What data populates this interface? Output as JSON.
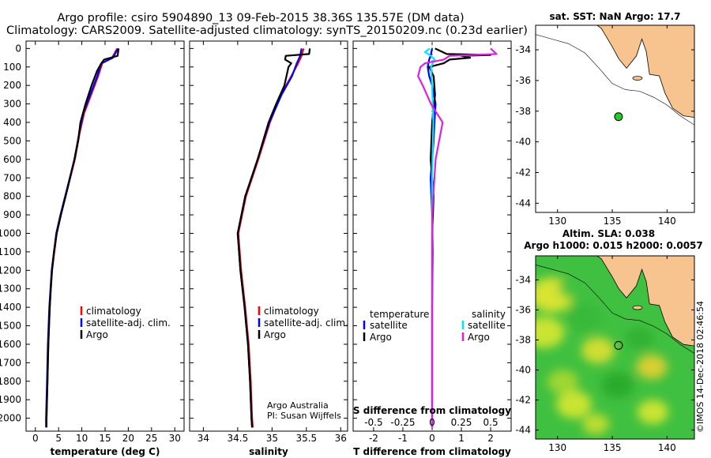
{
  "header": {
    "line1": "Argo profile: csiro 5904890_13 09-Feb-2015 38.36S 135.57E (DM data)",
    "line2": "Climatology: CARS2009. Satellite-adjusted climatology: synTS_20150209.nc (0.23d earlier)"
  },
  "depth_ticks": [
    0,
    100,
    200,
    300,
    400,
    500,
    600,
    700,
    800,
    900,
    1000,
    1100,
    1200,
    1300,
    1400,
    1500,
    1600,
    1700,
    1800,
    1900,
    2000
  ],
  "colors": {
    "climatology": "#ff0000",
    "satellite": "#0000ff",
    "argo": "#000000",
    "cyan": "#00e5ff",
    "magenta": "#e020e0",
    "land": "#f7c48f"
  },
  "chart_data": [
    {
      "type": "line",
      "title": "",
      "xlabel": "temperature (deg C)",
      "ylabel": "",
      "xlim": [
        -2,
        32
      ],
      "ylim": [
        2070,
        0
      ],
      "x_ticks": [
        0,
        5,
        10,
        15,
        20,
        25,
        30
      ],
      "x_tick_labels": [
        "0",
        "5",
        "10",
        "15",
        "20",
        "25",
        "30"
      ],
      "legend": [
        {
          "label": "climatology",
          "color": "#ff0000"
        },
        {
          "label": "satellite-adj. clim.",
          "color": "#0000ff"
        },
        {
          "label": "Argo",
          "color": "#000000"
        }
      ],
      "series": [
        {
          "name": "climatology",
          "depth": [
            0,
            50,
            80,
            150,
            250,
            350,
            450,
            600,
            750,
            900,
            1000,
            1200,
            1400,
            1600,
            1800,
            2000,
            2050
          ],
          "values": [
            17.6,
            16.5,
            14.4,
            13.5,
            12.0,
            10.5,
            9.6,
            8.5,
            7.0,
            5.5,
            4.6,
            3.6,
            3.1,
            2.8,
            2.6,
            2.4,
            2.4
          ]
        },
        {
          "name": "satellite",
          "depth": [
            0,
            50,
            80,
            150,
            250,
            350,
            450,
            600,
            750,
            900,
            1000,
            1200,
            1400,
            1600,
            1800,
            2000,
            2050
          ],
          "values": [
            17.8,
            16.7,
            14.2,
            13.3,
            11.8,
            10.3,
            9.5,
            8.4,
            6.9,
            5.4,
            4.5,
            3.5,
            3.0,
            2.7,
            2.5,
            2.3,
            2.3
          ]
        },
        {
          "name": "Argo",
          "depth": [
            0,
            40,
            60,
            80,
            120,
            200,
            300,
            400,
            500,
            600,
            750,
            900,
            1000,
            1100,
            1200,
            1300,
            1400,
            1600,
            1800,
            2000,
            2050
          ],
          "values": [
            17.9,
            17.7,
            14.8,
            14.2,
            13.3,
            12.1,
            10.8,
            9.7,
            9.2,
            8.4,
            7.0,
            5.5,
            4.6,
            4.0,
            3.6,
            3.3,
            3.1,
            2.8,
            2.6,
            2.4,
            2.4
          ]
        }
      ]
    },
    {
      "type": "line",
      "title": "",
      "xlabel": "salinity",
      "ylabel": "",
      "xlim": [
        33.8,
        36.1
      ],
      "ylim": [
        2070,
        0
      ],
      "x_ticks": [
        34,
        34.5,
        35,
        35.5,
        36
      ],
      "x_tick_labels": [
        "34",
        "34.5",
        "35",
        "35.5",
        "36"
      ],
      "legend": [
        {
          "label": "climatology",
          "color": "#ff0000"
        },
        {
          "label": "satellite-adj. clim.",
          "color": "#0000ff"
        },
        {
          "label": "Argo",
          "color": "#000000"
        }
      ],
      "annotations": [
        "Argo Australia",
        "PI: Susan Wijffels"
      ],
      "series": [
        {
          "name": "climatology",
          "depth": [
            0,
            40,
            80,
            150,
            250,
            400,
            600,
            800,
            1000,
            1200,
            1400,
            1600,
            1800,
            2000,
            2050
          ],
          "values": [
            35.46,
            35.43,
            35.38,
            35.28,
            35.13,
            34.97,
            34.8,
            34.62,
            34.51,
            34.55,
            34.61,
            34.66,
            34.69,
            34.71,
            34.72
          ]
        },
        {
          "name": "satellite",
          "depth": [
            0,
            40,
            80,
            150,
            250,
            400,
            600,
            800,
            1000,
            1200,
            1400,
            1600,
            1800,
            2000,
            2050
          ],
          "values": [
            35.43,
            35.41,
            35.36,
            35.29,
            35.14,
            34.96,
            34.79,
            34.61,
            34.5,
            34.54,
            34.6,
            34.65,
            34.68,
            34.7,
            34.71
          ]
        },
        {
          "name": "Argo",
          "depth": [
            0,
            30,
            40,
            60,
            80,
            100,
            200,
            300,
            400,
            600,
            800,
            1000,
            1200,
            1400,
            1600,
            1800,
            2000,
            2050
          ],
          "values": [
            35.55,
            35.54,
            35.2,
            35.19,
            35.28,
            35.24,
            35.18,
            35.06,
            34.95,
            34.79,
            34.61,
            34.5,
            34.54,
            34.6,
            34.65,
            34.68,
            34.7,
            34.71
          ]
        }
      ]
    },
    {
      "type": "line",
      "title": "S difference from climatology",
      "xlabel": "T difference from climatology",
      "ylabel": "",
      "xlim": [
        -2.7,
        2.7
      ],
      "ylim": [
        2070,
        0
      ],
      "x_ticks": [
        -2,
        -1,
        0,
        1,
        2
      ],
      "x_tick_labels": [
        "-2",
        "-1",
        "0",
        "1",
        "2"
      ],
      "secondary_x_ticks": [
        -0.5,
        -0.25,
        0,
        0.25,
        0.5
      ],
      "secondary_x_tick_labels": [
        "-0.5",
        "-0.25",
        "0",
        "0.25",
        "0.5"
      ],
      "secondary_xlim": [
        -0.675,
        0.675
      ],
      "legend_temperature_header": "temperature",
      "legend_salinity_header": "salinity",
      "legend_temperature": [
        {
          "label": "satellite",
          "color": "#0000ff"
        },
        {
          "label": "Argo",
          "color": "#000000"
        }
      ],
      "legend_salinity": [
        {
          "label": "satellite",
          "color": "#00e5ff"
        },
        {
          "label": "Argo",
          "color": "#e020e0"
        }
      ],
      "series": [
        {
          "name": "T satellite",
          "color": "#0000ff",
          "depth": [
            0,
            40,
            60,
            100,
            150,
            200,
            300,
            400,
            500,
            700,
            900,
            1100,
            1400,
            1700,
            2050
          ],
          "values": [
            0.0,
            -0.05,
            -0.1,
            -0.15,
            -0.1,
            0.0,
            0.12,
            0.08,
            0.05,
            -0.05,
            0.0,
            0.02,
            0.0,
            0.0,
            0.0
          ]
        },
        {
          "name": "T Argo",
          "color": "#000000",
          "depth": [
            0,
            30,
            35,
            40,
            50,
            60,
            80,
            100,
            150,
            250,
            400,
            600,
            800,
            1000,
            1500,
            2050
          ],
          "values": [
            0.1,
            0.5,
            2.0,
            1.0,
            1.3,
            0.6,
            0.4,
            -0.1,
            0.05,
            0.1,
            0.0,
            -0.05,
            0.05,
            0.0,
            0.0,
            0.0
          ]
        },
        {
          "name": "S satellite",
          "color": "#00e5ff",
          "depth": [
            0,
            20,
            40,
            60,
            100,
            200,
            400,
            700,
            1000,
            1500,
            2050
          ],
          "values": [
            -0.02,
            -0.06,
            -0.01,
            0.02,
            -0.01,
            0.0,
            0.01,
            0.0,
            0.0,
            0.0,
            0.0
          ]
        },
        {
          "name": "S Argo",
          "color": "#e020e0",
          "depth": [
            0,
            30,
            40,
            60,
            80,
            100,
            150,
            200,
            300,
            400,
            600,
            900,
            1200,
            2050
          ],
          "values": [
            0.5,
            0.55,
            0.15,
            0.1,
            -0.06,
            -0.1,
            -0.12,
            -0.08,
            -0.01,
            0.09,
            0.03,
            0.0,
            0.0,
            0.0
          ]
        }
      ]
    },
    {
      "type": "scatter",
      "title": "sat. SST: NaN Argo: 17.7",
      "xlim": [
        128,
        142.5
      ],
      "ylim": [
        -44.6,
        -32.4
      ],
      "x_ticks": [
        130,
        135,
        140
      ],
      "x_tick_labels": [
        "130",
        "135",
        "140"
      ],
      "y_ticks": [
        -34,
        -36,
        -38,
        -40,
        -42,
        -44
      ],
      "y_tick_labels": [
        "-34",
        "-36",
        "-38",
        "-40",
        "-42",
        "-44"
      ],
      "points": [
        {
          "lon": 135.57,
          "lat": -38.36
        }
      ]
    },
    {
      "type": "heatmap",
      "title": "Altim. SLA: 0.038",
      "subtitle": "Argo h1000: 0.015 h2000: 0.0057",
      "xlim": [
        128,
        142.5
      ],
      "ylim": [
        -44.6,
        -32.4
      ],
      "x_ticks": [
        130,
        135,
        140
      ],
      "x_tick_labels": [
        "130",
        "135",
        "140"
      ],
      "y_ticks": [
        -34,
        -36,
        -38,
        -40,
        -42,
        -44
      ],
      "y_tick_labels": [
        "-34",
        "-36",
        "-38",
        "-40",
        "-42",
        "-44"
      ],
      "points": [
        {
          "lon": 135.57,
          "lat": -38.36
        }
      ]
    }
  ],
  "footer_stamp": "©IMOS 14-Dec-2018 02:46:54"
}
